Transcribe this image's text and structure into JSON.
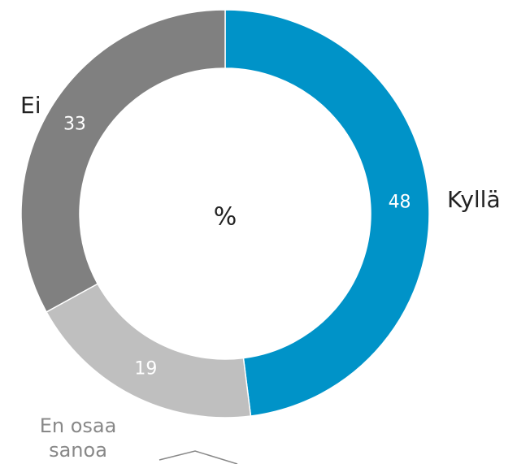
{
  "chart_data": {
    "type": "pie",
    "title": "%",
    "categories": [
      "Kyllä",
      "En osaa sanoa",
      "Ei"
    ],
    "values": [
      48,
      19,
      33
    ],
    "colors": [
      "#0093c8",
      "#bfbfbf",
      "#808080"
    ]
  }
}
